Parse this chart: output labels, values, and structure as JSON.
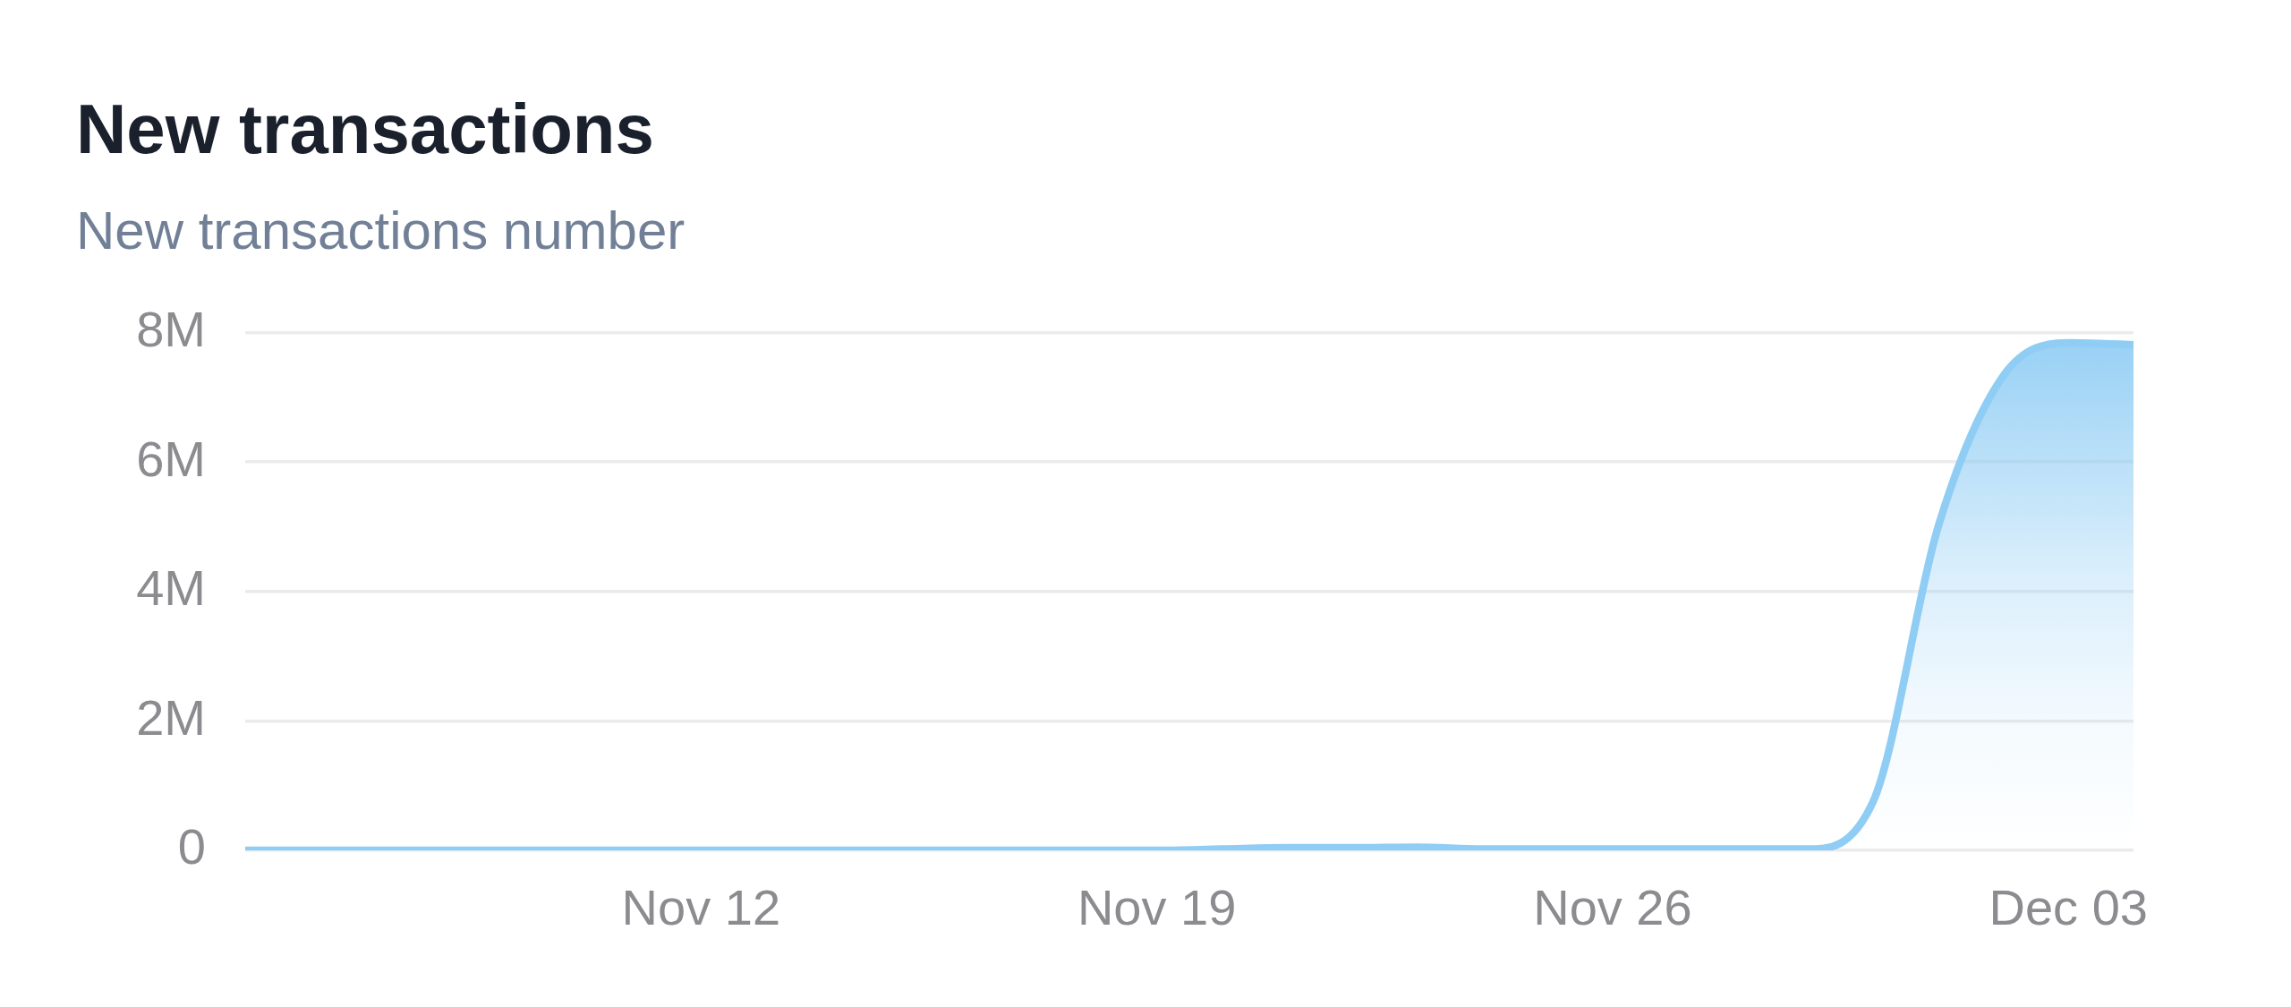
{
  "chart_data": {
    "type": "area",
    "title": "New transactions",
    "subtitle": "New transactions number",
    "x": [
      "--11-05",
      "--11-06",
      "--11-07",
      "--11-08",
      "--11-09",
      "--11-10",
      "--11-11",
      "--11-12",
      "--11-13",
      "--11-14",
      "--11-15",
      "--11-16",
      "--11-17",
      "--11-18",
      "--11-19",
      "--11-20",
      "--11-21",
      "--11-22",
      "--11-23",
      "--11-24",
      "--11-25",
      "--11-26",
      "--11-27",
      "--11-28",
      "--11-29",
      "--11-30",
      "--12-01",
      "--12-02",
      "--12-03",
      "--12-04"
    ],
    "values": [
      0,
      0,
      0,
      0,
      0,
      0,
      0,
      0,
      0,
      0,
      0,
      0,
      0,
      0,
      0,
      20000,
      40000,
      40000,
      50000,
      20000,
      20000,
      20000,
      20000,
      20000,
      20000,
      750000,
      5000000,
      7330000,
      7840000,
      7810000
    ],
    "color": "#90cdf4",
    "xlim": [
      "--11-05",
      "--12-04"
    ],
    "xticks": [
      {
        "value": "--11-12",
        "label": "Nov 12"
      },
      {
        "value": "--11-19",
        "label": "Nov 19"
      },
      {
        "value": "--11-26",
        "label": "Nov 26"
      },
      {
        "value": "--12-03",
        "label": "Dec 03"
      }
    ],
    "ylim": [
      0,
      8000000
    ],
    "yticks": [
      0,
      {
        "value": 2000000,
        "label": "2M"
      },
      {
        "value": 4000000,
        "label": "4M"
      },
      {
        "value": 6000000,
        "label": "6M"
      },
      {
        "value": 8000000,
        "label": "8M"
      }
    ],
    "grid": "y",
    "marker": "none"
  }
}
